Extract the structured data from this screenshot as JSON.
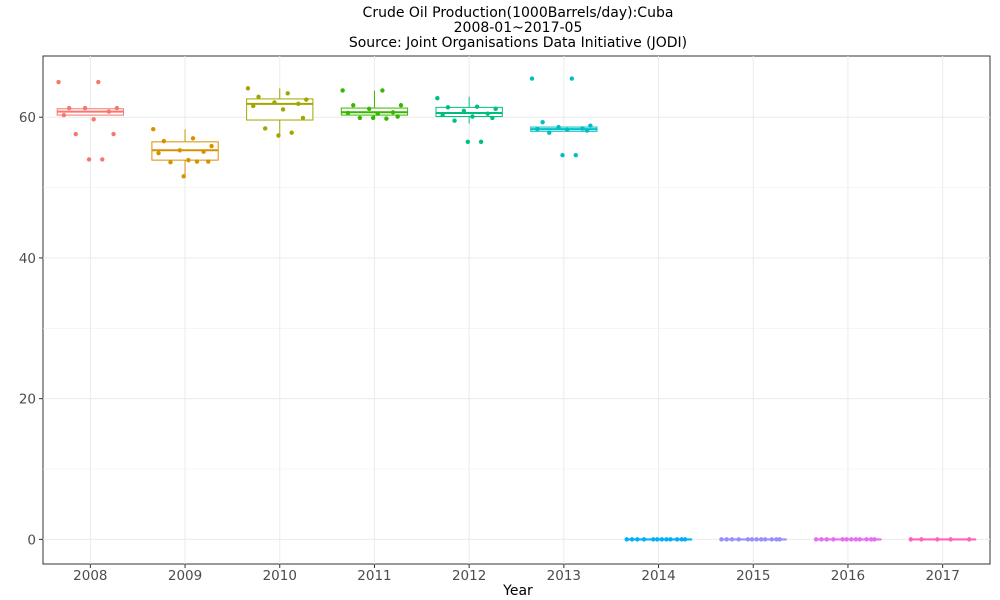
{
  "chart_data": {
    "type": "box",
    "title_lines": [
      "Crude Oil Production(1000Barrels/day):Cuba",
      "2008-01~2017-05",
      "Source: Joint Organisations Data Initiative (JODI)"
    ],
    "xlabel": "Year",
    "ylabel": "",
    "ylim": [
      -3.5,
      68.7
    ],
    "yticks": [
      0,
      20,
      40,
      60
    ],
    "grid": true,
    "legend": "none",
    "categories": [
      "2008",
      "2009",
      "2010",
      "2011",
      "2012",
      "2013",
      "2014",
      "2015",
      "2016",
      "2017"
    ],
    "colors": [
      "#F8766D",
      "#D89000",
      "#A3A500",
      "#39B600",
      "#00BF7D",
      "#00BFC4",
      "#00B0F6",
      "#9590FF",
      "#E76BF3",
      "#FF62BC"
    ],
    "boxes": [
      {
        "min": 60.3,
        "q1": 60.3,
        "median": 60.8,
        "q3": 61.2,
        "max": 61.3
      },
      {
        "min": 51.7,
        "q1": 53.9,
        "median": 55.3,
        "q3": 56.5,
        "max": 58.3
      },
      {
        "min": 57.4,
        "q1": 59.6,
        "median": 61.9,
        "q3": 62.6,
        "max": 64.1
      },
      {
        "min": 59.9,
        "q1": 60.3,
        "median": 60.7,
        "q3": 61.3,
        "max": 63.8
      },
      {
        "min": 59.1,
        "q1": 60.1,
        "median": 60.6,
        "q3": 61.4,
        "max": 62.9
      },
      {
        "min": 58.0,
        "q1": 58.0,
        "median": 58.3,
        "q3": 58.6,
        "max": 58.6
      },
      {
        "min": 0,
        "q1": 0,
        "median": 0,
        "q3": 0,
        "max": 0
      },
      {
        "min": 0,
        "q1": 0,
        "median": 0,
        "q3": 0,
        "max": 0
      },
      {
        "min": 0,
        "q1": 0,
        "median": 0,
        "q3": 0,
        "max": 0
      },
      {
        "min": 0,
        "q1": 0,
        "median": 0,
        "q3": 0,
        "max": 0
      }
    ],
    "points": [
      [
        65.0,
        65.0,
        61.3,
        61.3,
        61.3,
        60.8,
        60.3,
        59.7,
        57.6,
        57.6,
        54.0,
        54.0
      ],
      [
        58.3,
        57.0,
        56.6,
        55.9,
        55.3,
        55.1,
        54.9,
        53.9,
        53.7,
        53.6,
        53.7,
        51.6
      ],
      [
        64.1,
        63.4,
        62.9,
        62.5,
        62.1,
        61.9,
        61.6,
        61.1,
        59.9,
        58.4,
        57.8,
        57.4
      ],
      [
        63.8,
        63.8,
        61.7,
        61.7,
        61.2,
        60.7,
        60.6,
        60.5,
        60.1,
        59.9,
        59.8,
        59.9
      ],
      [
        62.7,
        61.5,
        61.4,
        61.2,
        60.9,
        60.5,
        60.3,
        60.1,
        59.9,
        59.5,
        56.5,
        56.5
      ],
      [
        65.5,
        65.5,
        59.3,
        58.8,
        58.6,
        58.4,
        58.3,
        58.2,
        58.1,
        57.8,
        54.6,
        54.6
      ],
      [
        0,
        0,
        0,
        0,
        0,
        0,
        0,
        0,
        0,
        0,
        0,
        0
      ],
      [
        0,
        0,
        0,
        0,
        0,
        0,
        0,
        0,
        0,
        0,
        0,
        0
      ],
      [
        0,
        0,
        0,
        0,
        0,
        0,
        0,
        0,
        0,
        0,
        0,
        0
      ],
      [
        0,
        0,
        0,
        0,
        0
      ]
    ]
  }
}
